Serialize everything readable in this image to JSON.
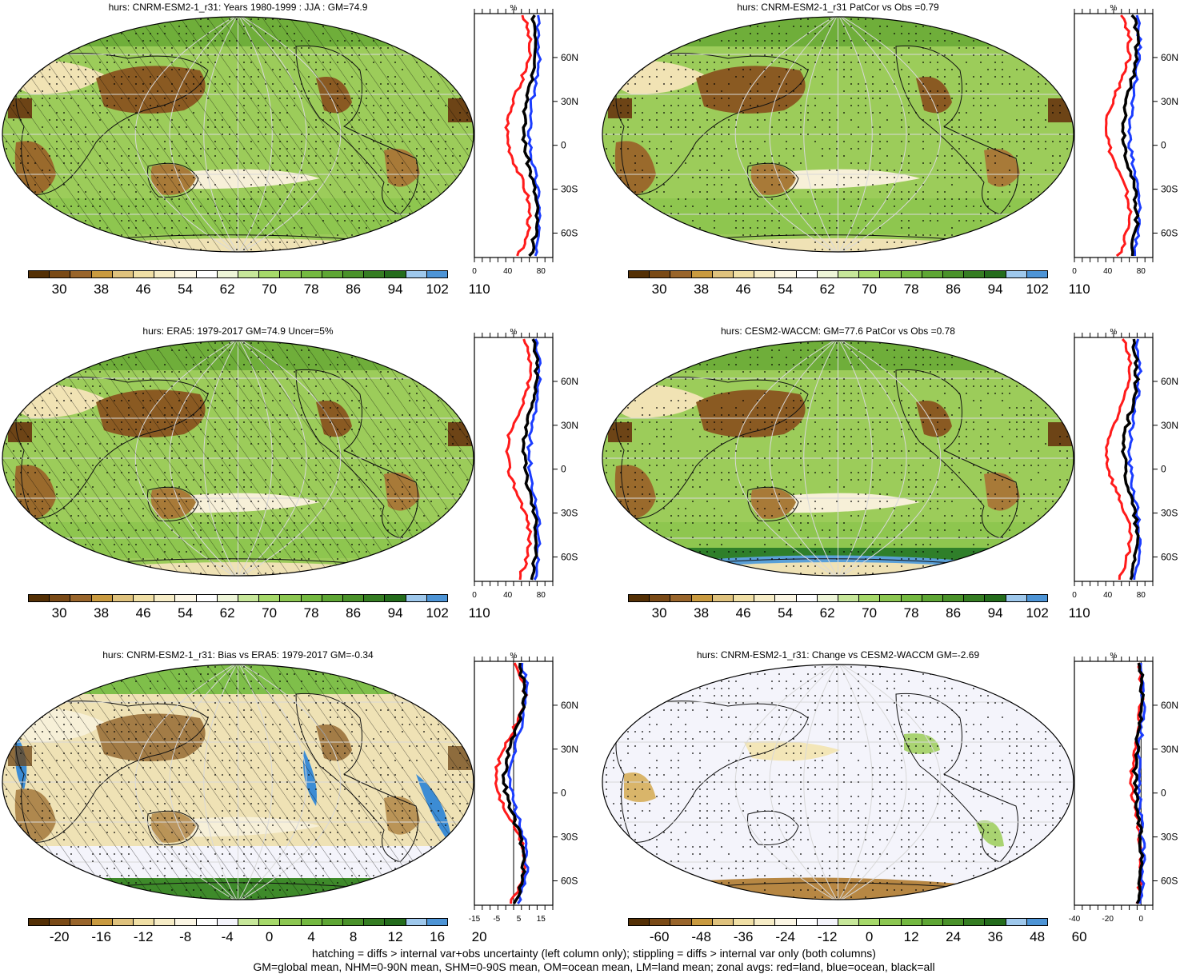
{
  "panels": [
    {
      "title": "hurs: CNRM-ESM2-1_r31: Years 1980-1999 : JJA : GM=74.9",
      "colorbar": "abs",
      "zonal_xticks": [
        "0",
        "40",
        "80"
      ],
      "zonal_unit": "%",
      "hatched": true
    },
    {
      "title": "hurs: CNRM-ESM2-1_r31 PatCor vs Obs =0.79",
      "colorbar": "abs",
      "zonal_xticks": [
        "0",
        "40",
        "80"
      ],
      "zonal_unit": "%",
      "hatched": false
    },
    {
      "title": "hurs: ERA5: 1979-2017 GM=74.9 Uncer=5%",
      "colorbar": "abs",
      "zonal_xticks": [
        "0",
        "40",
        "80"
      ],
      "zonal_unit": "%",
      "hatched": true
    },
    {
      "title": "hurs: CESM2-WACCM: GM=77.6 PatCor vs Obs =0.78",
      "colorbar": "abs",
      "zonal_xticks": [
        "0",
        "40",
        "80"
      ],
      "zonal_unit": "%",
      "hatched": false
    },
    {
      "title": "hurs: CNRM-ESM2-1_r31: Bias vs ERA5: 1979-2017 GM=-0.34",
      "colorbar": "bias",
      "zonal_xticks": [
        "-15",
        "-5",
        "5",
        "15"
      ],
      "zonal_unit": "%",
      "hatched": true
    },
    {
      "title": "hurs: CNRM-ESM2-1_r31: Change vs CESM2-WACCM GM=-2.69",
      "colorbar": "change",
      "zonal_xticks": [
        "-40",
        "-20",
        "0"
      ],
      "zonal_unit": "%",
      "hatched": false
    }
  ],
  "lat_labels": [
    "60N",
    "30N",
    "0",
    "30S",
    "60S"
  ],
  "colorbars": {
    "abs": {
      "labels": [
        "30",
        "38",
        "46",
        "54",
        "62",
        "70",
        "78",
        "86",
        "94",
        "102",
        "110"
      ],
      "colors": [
        "#543005",
        "#7a4a16",
        "#99652b",
        "#c99a3f",
        "#dfc27d",
        "#f0dfa5",
        "#f6ecc6",
        "#fbf6e4",
        "#ffffff",
        "#eef5d8",
        "#c7e79a",
        "#a6d96a",
        "#8cc751",
        "#74b940",
        "#5ea634",
        "#4a922a",
        "#357d22",
        "#246c1c",
        "#9ec8ec",
        "#4d94d6"
      ]
    },
    "bias": {
      "labels": [
        "-20",
        "-16",
        "-12",
        "-8",
        "-4",
        "0",
        "4",
        "8",
        "12",
        "16",
        "20"
      ],
      "colors": [
        "#543005",
        "#7a4a16",
        "#99652b",
        "#c99a3f",
        "#dfc27d",
        "#f0dfa5",
        "#f6ecc6",
        "#fbf6e4",
        "#ffffff",
        "#f4f4fb",
        "#c7e79a",
        "#a6d96a",
        "#8cc751",
        "#74b940",
        "#5ea634",
        "#4a922a",
        "#357d22",
        "#246c1c",
        "#9ec8ec",
        "#4d94d6"
      ]
    },
    "change": {
      "labels": [
        "-60",
        "-48",
        "-36",
        "-24",
        "-12",
        "0",
        "12",
        "24",
        "36",
        "48",
        "60"
      ],
      "colors": [
        "#543005",
        "#7a4a16",
        "#99652b",
        "#c99a3f",
        "#dfc27d",
        "#f0dfa5",
        "#f6ecc6",
        "#fbf6e4",
        "#ffffff",
        "#f4f4fb",
        "#c7e79a",
        "#a6d96a",
        "#8cc751",
        "#74b940",
        "#5ea634",
        "#4a922a",
        "#357d22",
        "#246c1c",
        "#9ec8ec",
        "#4d94d6"
      ]
    }
  },
  "zonal_colors": {
    "land": "#ff1a1a",
    "ocean": "#1a3cff",
    "all": "#000000"
  },
  "footer": {
    "line1": "hatching = diffs > internal var+obs uncertainty (left column only); stippling = diffs > internal var only (both columns)",
    "line2": "GM=global mean, NHM=0-90N mean, SHM=0-90S mean, OM=ocean mean, LM=land mean; zonal avgs: red=land, blue=ocean, black=all"
  }
}
